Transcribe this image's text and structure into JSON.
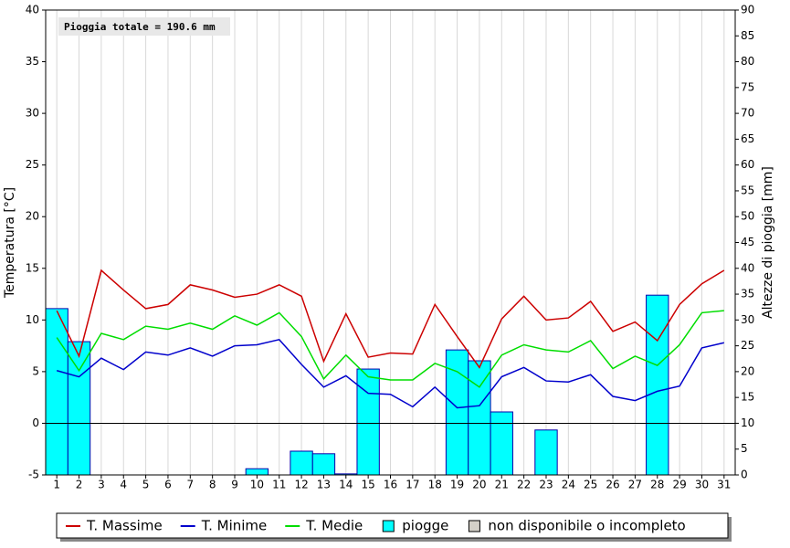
{
  "chart_data": {
    "type": "bar_line",
    "annotation": "Pioggia totale = 190.6 mm",
    "ylabel": "Temperatura [°C]",
    "y2label": "Altezze di pioggia [mm]",
    "categories": [
      "1",
      "2",
      "3",
      "4",
      "5",
      "6",
      "7",
      "8",
      "9",
      "10",
      "11",
      "12",
      "13",
      "14",
      "15",
      "16",
      "17",
      "18",
      "19",
      "20",
      "21",
      "22",
      "23",
      "24",
      "25",
      "26",
      "27",
      "28",
      "29",
      "30",
      "31"
    ],
    "ylim": [
      -5,
      40
    ],
    "yticks": [
      -5,
      0,
      5,
      10,
      15,
      20,
      25,
      30,
      35,
      40
    ],
    "y2lim": [
      0,
      90
    ],
    "y2ticks": [
      0,
      5,
      10,
      15,
      20,
      25,
      30,
      35,
      40,
      45,
      50,
      55,
      60,
      65,
      70,
      75,
      80,
      85,
      90
    ],
    "grid": true,
    "series": [
      {
        "name": "T. Massime",
        "type": "line",
        "color": "#cc0000",
        "values": [
          10.9,
          6.5,
          14.8,
          12.9,
          11.1,
          11.5,
          13.4,
          12.9,
          12.2,
          12.5,
          13.4,
          12.3,
          6.0,
          10.6,
          6.4,
          6.8,
          6.7,
          11.5,
          8.4,
          5.4,
          10.1,
          12.3,
          10.0,
          10.2,
          11.8,
          8.9,
          9.8,
          8.0,
          11.5,
          13.5,
          14.8
        ]
      },
      {
        "name": "T. Minime",
        "type": "line",
        "color": "#0000cc",
        "values": [
          5.1,
          4.5,
          6.3,
          5.2,
          6.9,
          6.6,
          7.3,
          6.5,
          7.5,
          7.6,
          8.1,
          5.7,
          3.5,
          4.6,
          2.9,
          2.8,
          1.6,
          3.5,
          1.5,
          1.7,
          4.5,
          5.4,
          4.1,
          4.0,
          4.7,
          2.6,
          2.2,
          3.1,
          3.6,
          7.3,
          7.8
        ]
      },
      {
        "name": "T. Medie",
        "type": "line",
        "color": "#00dd00",
        "values": [
          8.3,
          5.1,
          8.7,
          8.1,
          9.4,
          9.1,
          9.7,
          9.1,
          10.4,
          9.5,
          10.7,
          8.4,
          4.3,
          6.6,
          4.5,
          4.2,
          4.2,
          5.8,
          5.0,
          3.5,
          6.6,
          7.6,
          7.1,
          6.9,
          8.0,
          5.3,
          6.5,
          5.6,
          7.6,
          10.7,
          10.9
        ]
      },
      {
        "name": "piogge",
        "type": "bar",
        "axis": "y2",
        "color": "#00ffff",
        "values": [
          32.2,
          25.8,
          0,
          0,
          0,
          0,
          0,
          0,
          0,
          1.2,
          0,
          4.6,
          4.1,
          0.2,
          20.5,
          0,
          0,
          0,
          24.2,
          22.1,
          12.2,
          0,
          8.7,
          0,
          0,
          0,
          0,
          34.8,
          0,
          0,
          0
        ]
      }
    ],
    "extra_legend": {
      "name": "non disponibile o incompleto",
      "color": "#d4d0c8"
    }
  }
}
